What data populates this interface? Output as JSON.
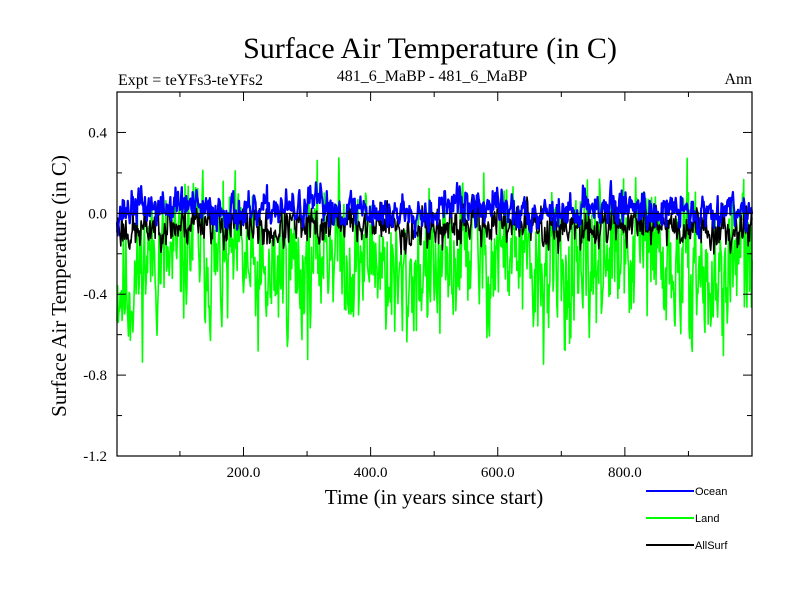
{
  "chart_data": {
    "type": "line",
    "title": "Surface Air Temperature (in C)",
    "subtitle_left": "Expt = teYFs3-teYFs2",
    "subtitle_center": "481_6_MaBP - 481_6_MaBP",
    "subtitle_right": "Ann",
    "xlabel": "Time (in years since start)",
    "ylabel": "Surface Air Temperature (in C)",
    "xlim": [
      1,
      1000
    ],
    "ylim": [
      -1.2,
      0.6
    ],
    "xticks": [
      200,
      400,
      600,
      800
    ],
    "xtick_labels": [
      "200.0",
      "400.0",
      "600.0",
      "800.0"
    ],
    "yticks": [
      -1.2,
      -0.8,
      -0.4,
      0.0,
      0.4
    ],
    "ytick_labels": [
      "-1.2",
      "-0.8",
      "-0.4",
      "0.0",
      "0.4"
    ],
    "zero_line": 0.0,
    "series_style": [
      {
        "name": "Land",
        "color": "#00ff00",
        "mean": -0.25,
        "amplitude": 0.28,
        "seed": 11
      },
      {
        "name": "AllSurf",
        "color": "#000000",
        "mean": -0.06,
        "amplitude": 0.08,
        "seed": 23
      },
      {
        "name": "Ocean",
        "color": "#0000ff",
        "mean": 0.02,
        "amplitude": 0.07,
        "seed": 37
      }
    ],
    "legend": [
      {
        "name": "Ocean",
        "color": "#0000ff"
      },
      {
        "name": "Land",
        "color": "#00ff00"
      },
      {
        "name": "AllSurf",
        "color": "#000000"
      }
    ]
  }
}
